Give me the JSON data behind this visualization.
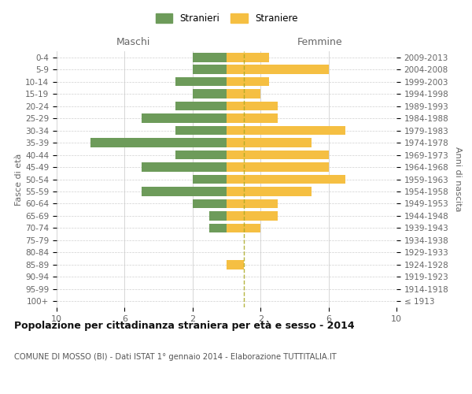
{
  "age_groups": [
    "100+",
    "95-99",
    "90-94",
    "85-89",
    "80-84",
    "75-79",
    "70-74",
    "65-69",
    "60-64",
    "55-59",
    "50-54",
    "45-49",
    "40-44",
    "35-39",
    "30-34",
    "25-29",
    "20-24",
    "15-19",
    "10-14",
    "5-9",
    "0-4"
  ],
  "birth_years": [
    "≤ 1913",
    "1914-1918",
    "1919-1923",
    "1924-1928",
    "1929-1933",
    "1934-1938",
    "1939-1943",
    "1944-1948",
    "1949-1953",
    "1954-1958",
    "1959-1963",
    "1964-1968",
    "1969-1973",
    "1974-1978",
    "1979-1983",
    "1984-1988",
    "1989-1993",
    "1994-1998",
    "1999-2003",
    "2004-2008",
    "2009-2013"
  ],
  "males": [
    0,
    0,
    0,
    0,
    0,
    0,
    1,
    1,
    2,
    5,
    2,
    5,
    3,
    8,
    3,
    5,
    3,
    2,
    3,
    2,
    2
  ],
  "females": [
    0,
    0,
    0,
    1,
    0,
    0,
    2,
    3,
    3,
    5,
    7,
    6,
    6,
    5,
    7,
    3,
    3,
    2,
    2.5,
    6,
    2.5
  ],
  "male_color": "#6d9b5a",
  "female_color": "#f5bf42",
  "title": "Popolazione per cittadinanza straniera per età e sesso - 2014",
  "subtitle": "COMUNE DI MOSSO (BI) - Dati ISTAT 1° gennaio 2014 - Elaborazione TUTTITALIA.IT",
  "xlabel_left": "Maschi",
  "xlabel_right": "Femmine",
  "ylabel_left": "Fasce di età",
  "ylabel_right": "Anni di nascita",
  "legend_male": "Stranieri",
  "legend_female": "Straniere",
  "xlim": 10,
  "background_color": "#ffffff",
  "grid_color": "#d0d0d0",
  "bar_height": 0.75,
  "dashed_line_color": "#aaa820"
}
